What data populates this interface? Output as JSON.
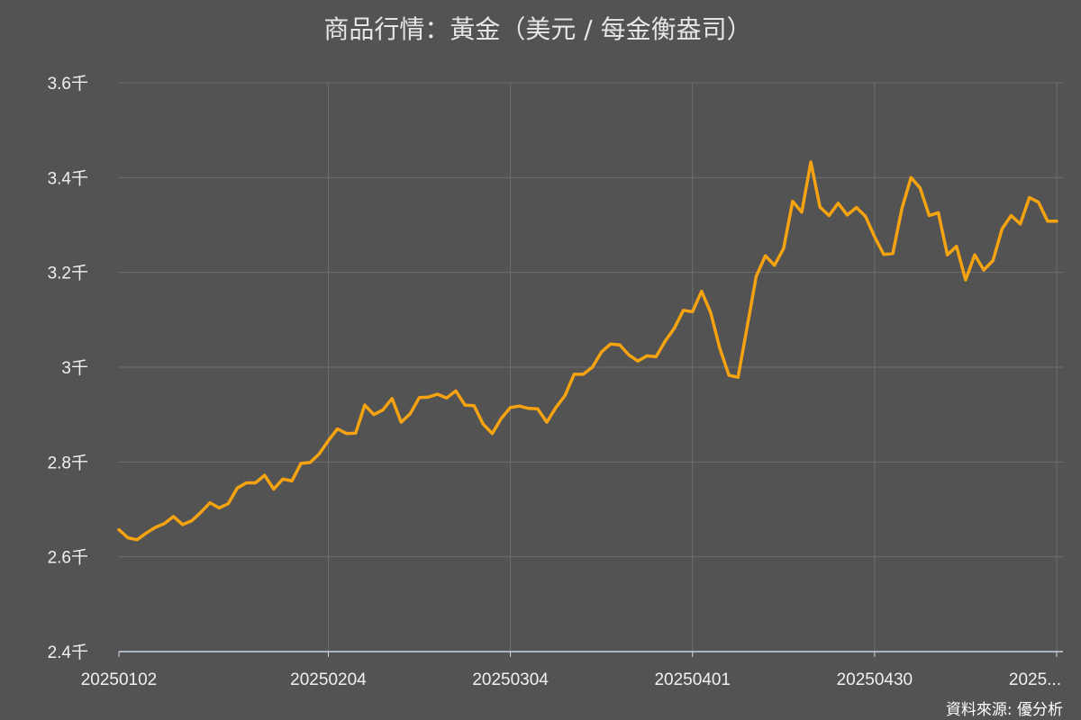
{
  "chart_data": {
    "type": "line",
    "title": "商品行情：黃金（美元 / 每金衡盎司）",
    "source": "資料來源: 優分析",
    "ylim": [
      2400,
      3600
    ],
    "y_ticks": [
      {
        "value": 2400,
        "label": "2.4千"
      },
      {
        "value": 2600,
        "label": "2.6千"
      },
      {
        "value": 2800,
        "label": "2.8千"
      },
      {
        "value": 3000,
        "label": "3千"
      },
      {
        "value": 3200,
        "label": "3.2千"
      },
      {
        "value": 3400,
        "label": "3.4千"
      },
      {
        "value": 3600,
        "label": "3.6千"
      }
    ],
    "x_ticks": [
      {
        "index": 0,
        "label": "20250102"
      },
      {
        "index": 23,
        "label": "20250204"
      },
      {
        "index": 43,
        "label": "20250304"
      },
      {
        "index": 63,
        "label": "20250401"
      },
      {
        "index": 83,
        "label": "20250430"
      },
      {
        "index": 103,
        "label": "2025..."
      }
    ],
    "grid": true,
    "colors": {
      "line": "#f5a310",
      "grid": "#6e6e6e",
      "axis": "#c9d4e8",
      "background": "#535353"
    },
    "series": [
      {
        "values": [
          2657,
          2640,
          2636,
          2650,
          2662,
          2670,
          2685,
          2668,
          2676,
          2694,
          2714,
          2703,
          2712,
          2745,
          2756,
          2756,
          2772,
          2743,
          2764,
          2760,
          2797,
          2799,
          2817,
          2845,
          2870,
          2860,
          2861,
          2920,
          2900,
          2910,
          2934,
          2884,
          2902,
          2936,
          2937,
          2943,
          2935,
          2950,
          2920,
          2919,
          2880,
          2860,
          2892,
          2915,
          2918,
          2913,
          2912,
          2884,
          2915,
          2940,
          2985,
          2985,
          3000,
          3032,
          3049,
          3047,
          3026,
          3013,
          3024,
          3022,
          3055,
          3082,
          3120,
          3117,
          3160,
          3115,
          3040,
          2983,
          2979,
          3085,
          3192,
          3235,
          3215,
          3250,
          3350,
          3327,
          3433,
          3338,
          3320,
          3346,
          3321,
          3337,
          3318,
          3275,
          3238,
          3240,
          3335,
          3400,
          3378,
          3320,
          3326,
          3237,
          3255,
          3184,
          3237,
          3205,
          3225,
          3292,
          3320,
          3302,
          3358,
          3348,
          3308,
          3308
        ]
      }
    ]
  }
}
